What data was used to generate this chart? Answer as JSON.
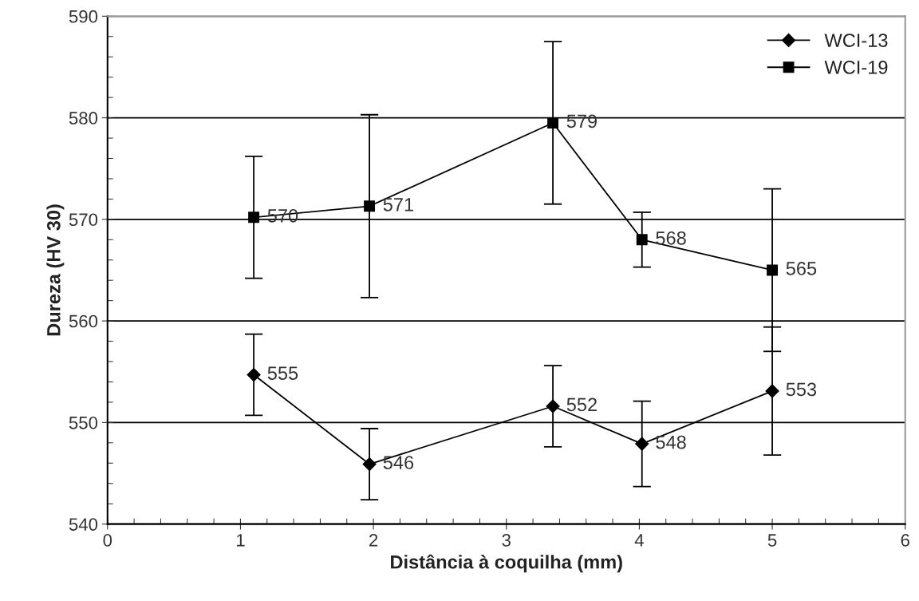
{
  "chart_data": {
    "type": "line",
    "xlabel": "Distância à coquilha (mm)",
    "ylabel": "Dureza (HV 30)",
    "xlim": [
      0,
      6
    ],
    "xticks": [
      0,
      1,
      2,
      3,
      4,
      5,
      6
    ],
    "ylim": [
      540,
      590
    ],
    "yticks": [
      540,
      550,
      560,
      570,
      580,
      590
    ],
    "grid": "y",
    "legend": "top right",
    "line_style": "solid",
    "series": [
      {
        "name": "WCI-13",
        "color": "#000000",
        "marker": "diamond",
        "x": [
          1.1,
          1.97,
          3.35,
          4.02,
          5.0
        ],
        "values": [
          554.7,
          545.9,
          551.6,
          547.9,
          553.1
        ],
        "errors": [
          4,
          3.5,
          4,
          4.2,
          6.3
        ],
        "value_labels": [
          "555",
          "546",
          "552",
          "548",
          "553"
        ]
      },
      {
        "name": "WCI-19",
        "color": "#000000",
        "marker": "square",
        "x": [
          1.1,
          1.97,
          3.35,
          4.02,
          5.0
        ],
        "values": [
          570.2,
          571.3,
          579.5,
          568.0,
          565.0
        ],
        "errors": [
          6,
          9,
          8,
          2.7,
          8
        ],
        "value_labels": [
          "570",
          "571",
          "579",
          "568",
          "565"
        ]
      }
    ]
  }
}
